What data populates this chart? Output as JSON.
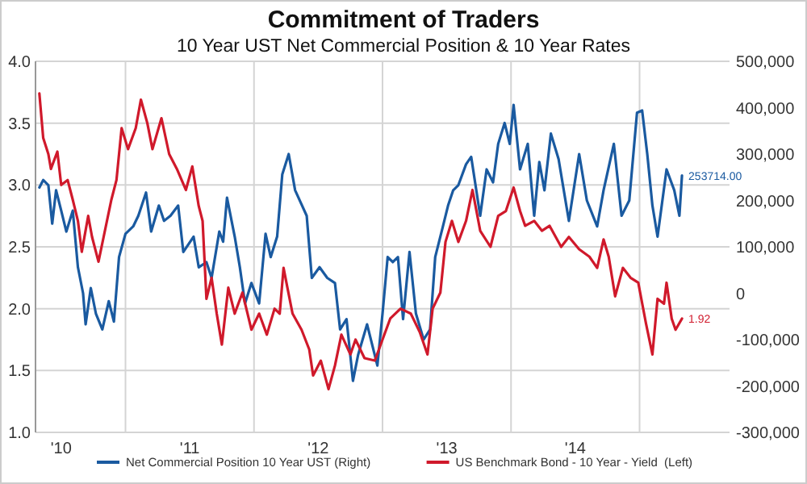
{
  "chart_data": {
    "type": "line",
    "title": "Commitment of Traders",
    "subtitle": "10 Year UST Net Commercial Position & 10 Year Rates",
    "xlim": [
      2009.8,
      2015.2
    ],
    "xticks": [
      {
        "value": 2010,
        "label": "'10"
      },
      {
        "value": 2010.5,
        "label": null
      },
      {
        "value": 2011,
        "label": "'11"
      },
      {
        "value": 2011.5,
        "label": null
      },
      {
        "value": 2012,
        "label": "'12"
      },
      {
        "value": 2012.5,
        "label": null
      },
      {
        "value": 2013,
        "label": "'13"
      },
      {
        "value": 2013.5,
        "label": null
      },
      {
        "value": 2014,
        "label": "'14"
      },
      {
        "value": 2014.5,
        "label": null
      }
    ],
    "ylim": [
      1,
      4
    ],
    "yticks": [
      {
        "value": 1,
        "label": "1.0"
      },
      {
        "value": 1.5,
        "label": "1.5"
      },
      {
        "value": 2,
        "label": "2.0"
      },
      {
        "value": 2.5,
        "label": "2.5"
      },
      {
        "value": 3,
        "label": "3.0"
      },
      {
        "value": 3.5,
        "label": "3.5"
      },
      {
        "value": 4,
        "label": "4.0"
      }
    ],
    "y2lim": [
      -300000,
      500000
    ],
    "y2ticks": [
      {
        "value": -300000,
        "label": "-300,000"
      },
      {
        "value": -200000,
        "label": "-200,000"
      },
      {
        "value": -100000,
        "label": "-100,000"
      },
      {
        "value": 0,
        "label": "0"
      },
      {
        "value": 100000,
        "label": "100,000"
      },
      {
        "value": 200000,
        "label": "200,000"
      },
      {
        "value": 300000,
        "label": "300,000"
      },
      {
        "value": 400000,
        "label": "400,000"
      },
      {
        "value": 500000,
        "label": "500,000"
      }
    ],
    "grid": true,
    "legend": "bottom left",
    "marker": "none",
    "line_style": "solid",
    "series": [
      {
        "name": "Net Commercial Position 10 Year UST (Right)",
        "color": "#1a5aa0",
        "axis": "y2",
        "x": [
          2009.83,
          2009.86,
          2009.9,
          2009.93,
          2009.96,
          2010,
          2010.04,
          2010.09,
          2010.13,
          2010.17,
          2010.19,
          2010.23,
          2010.27,
          2010.32,
          2010.37,
          2010.41,
          2010.45,
          2010.5,
          2010.56,
          2010.6,
          2010.66,
          2010.7,
          2010.76,
          2010.8,
          2010.85,
          2010.91,
          2010.95,
          2011.03,
          2011.07,
          2011.13,
          2011.17,
          2011.23,
          2011.26,
          2011.29,
          2011.35,
          2011.39,
          2011.43,
          2011.48,
          2011.54,
          2011.59,
          2011.63,
          2011.68,
          2011.72,
          2011.77,
          2011.82,
          2011.91,
          2011.95,
          2012.01,
          2012.07,
          2012.13,
          2012.17,
          2012.22,
          2012.27,
          2012.31,
          2012.38,
          2012.46,
          2012.5,
          2012.54,
          2012.58,
          2012.62,
          2012.66,
          2012.71,
          2012.76,
          2012.82,
          2012.87,
          2012.91,
          2012.97,
          2013.01,
          2013.05,
          2013.09,
          2013.15,
          2013.19,
          2013.26,
          2013.31,
          2013.36,
          2013.4,
          2013.45,
          2013.49,
          2013.52,
          2013.57,
          2013.63,
          2013.68,
          2013.72,
          2013.76,
          2013.81,
          2013.87,
          2013.95,
          2014.03,
          2014.09,
          2014.17,
          2014.22,
          2014.3,
          2014.36,
          2014.42,
          2014.48,
          2014.52,
          2014.56,
          2014.6,
          2014.64,
          2014.71,
          2014.77,
          2014.81,
          2014.83
        ],
        "values": [
          228000,
          244000,
          233000,
          150000,
          222000,
          178000,
          133000,
          178000,
          56000,
          0,
          -67000,
          11000,
          -44000,
          -78000,
          -17000,
          -61000,
          78000,
          128000,
          144000,
          167000,
          217000,
          133000,
          189000,
          156000,
          167000,
          189000,
          89000,
          122000,
          56000,
          67000,
          33000,
          133000,
          111000,
          206000,
          122000,
          56000,
          -22000,
          22000,
          -22000,
          128000,
          78000,
          122000,
          256000,
          300000,
          222000,
          167000,
          33000,
          56000,
          33000,
          22000,
          -78000,
          -56000,
          -189000,
          -133000,
          -67000,
          -156000,
          -44000,
          78000,
          67000,
          78000,
          -56000,
          89000,
          -44000,
          -100000,
          -78000,
          78000,
          144000,
          189000,
          222000,
          233000,
          278000,
          294000,
          167000,
          267000,
          239000,
          322000,
          367000,
          322000,
          406000,
          267000,
          322000,
          167000,
          283000,
          222000,
          344000,
          289000,
          156000,
          300000,
          200000,
          144000,
          222000,
          322000,
          167000,
          200000,
          389000,
          394000,
          300000,
          189000,
          122000,
          267000,
          222000,
          167000,
          253714
        ],
        "value_labels": [
          null,
          null,
          null,
          null,
          null,
          null,
          null,
          null,
          null,
          null,
          null,
          null,
          null,
          null,
          null,
          null,
          null,
          null,
          null,
          null,
          null,
          null,
          null,
          null,
          null,
          null,
          null,
          null,
          null,
          null,
          null,
          null,
          null,
          null,
          null,
          null,
          null,
          null,
          null,
          null,
          null,
          null,
          null,
          null,
          null,
          null,
          null,
          null,
          null,
          null,
          null,
          null,
          null,
          null,
          null,
          null,
          null,
          null,
          null,
          null,
          null,
          null,
          null,
          null,
          null,
          null,
          null,
          null,
          null,
          null,
          null,
          null,
          null,
          null,
          null,
          null,
          null,
          null,
          null,
          null,
          null,
          null,
          null,
          null,
          null,
          null,
          null,
          null,
          null,
          null,
          null,
          null,
          null,
          null,
          null,
          null,
          null,
          null,
          null,
          null,
          null,
          null,
          "253714.00"
        ]
      },
      {
        "name": "US Benchmark Bond - 10 Year - Yield  (Left)",
        "color": "#d0192b",
        "x": [
          2009.83,
          2009.86,
          2009.9,
          2009.92,
          2009.97,
          2010,
          2010.05,
          2010.09,
          2010.13,
          2010.16,
          2010.21,
          2010.24,
          2010.29,
          2010.33,
          2010.39,
          2010.43,
          2010.47,
          2010.52,
          2010.58,
          2010.62,
          2010.67,
          2010.71,
          2010.78,
          2010.84,
          2010.9,
          2010.97,
          2011.02,
          2011.07,
          2011.1,
          2011.13,
          2011.17,
          2011.21,
          2011.25,
          2011.3,
          2011.35,
          2011.41,
          2011.48,
          2011.54,
          2011.6,
          2011.66,
          2011.7,
          2011.73,
          2011.76,
          2011.8,
          2011.87,
          2011.93,
          2011.96,
          2012.02,
          2012.08,
          2012.13,
          2012.18,
          2012.25,
          2012.29,
          2012.36,
          2012.44,
          2012.5,
          2012.56,
          2012.64,
          2012.72,
          2012.79,
          2012.85,
          2012.89,
          2012.95,
          2012.99,
          2013.04,
          2013.09,
          2013.15,
          2013.2,
          2013.26,
          2013.34,
          2013.4,
          2013.46,
          2013.52,
          2013.57,
          2013.61,
          2013.68,
          2013.74,
          2013.8,
          2013.89,
          2013.95,
          2014.03,
          2014.11,
          2014.17,
          2014.22,
          2014.26,
          2014.31,
          2014.37,
          2014.43,
          2014.49,
          2014.55,
          2014.6,
          2014.64,
          2014.69,
          2014.71,
          2014.75,
          2014.78,
          2014.83
        ],
        "values": [
          3.74,
          3.38,
          3.25,
          3.13,
          3.27,
          3.0,
          3.04,
          2.88,
          2.71,
          2.46,
          2.75,
          2.58,
          2.38,
          2.58,
          2.88,
          3.04,
          3.46,
          3.29,
          3.46,
          3.69,
          3.5,
          3.29,
          3.54,
          3.25,
          3.13,
          2.96,
          3.15,
          2.83,
          2.71,
          2.08,
          2.25,
          1.96,
          1.71,
          2.17,
          1.96,
          2.13,
          1.83,
          1.96,
          1.79,
          2.0,
          1.96,
          2.33,
          2.17,
          1.96,
          1.83,
          1.67,
          1.46,
          1.58,
          1.35,
          1.54,
          1.79,
          1.63,
          1.75,
          1.6,
          1.58,
          1.75,
          1.92,
          2.0,
          1.96,
          1.81,
          1.63,
          2.0,
          2.13,
          2.54,
          2.71,
          2.54,
          2.71,
          2.96,
          2.63,
          2.5,
          2.75,
          2.79,
          2.98,
          2.79,
          2.67,
          2.71,
          2.63,
          2.67,
          2.5,
          2.58,
          2.48,
          2.42,
          2.33,
          2.56,
          2.42,
          2.1,
          2.33,
          2.25,
          2.21,
          1.88,
          1.63,
          2.08,
          2.04,
          2.21,
          1.92,
          1.83,
          1.92
        ],
        "value_labels": [
          null,
          null,
          null,
          null,
          null,
          null,
          null,
          null,
          null,
          null,
          null,
          null,
          null,
          null,
          null,
          null,
          null,
          null,
          null,
          null,
          null,
          null,
          null,
          null,
          null,
          null,
          null,
          null,
          null,
          null,
          null,
          null,
          null,
          null,
          null,
          null,
          null,
          null,
          null,
          null,
          null,
          null,
          null,
          null,
          null,
          null,
          null,
          null,
          null,
          null,
          null,
          null,
          null,
          null,
          null,
          null,
          null,
          null,
          null,
          null,
          null,
          null,
          null,
          null,
          null,
          null,
          null,
          null,
          null,
          null,
          null,
          null,
          null,
          null,
          null,
          null,
          null,
          null,
          null,
          null,
          null,
          null,
          null,
          null,
          null,
          null,
          null,
          null,
          null,
          null,
          null,
          null,
          null,
          null,
          null,
          null,
          "1.92"
        ]
      }
    ]
  }
}
